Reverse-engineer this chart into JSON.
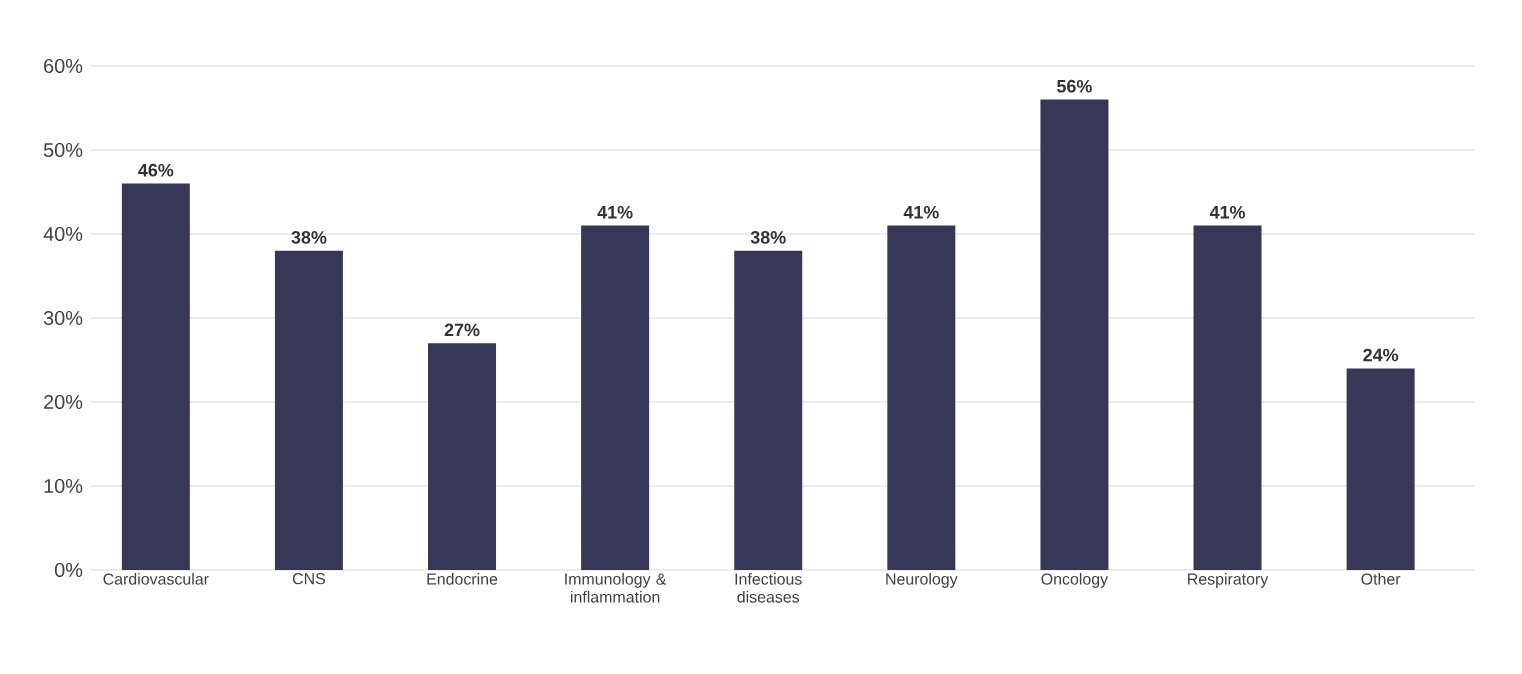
{
  "chart_data": {
    "type": "bar",
    "categories": [
      "Cardiovascular",
      "CNS",
      "Endocrine",
      "Immunology & inflammation",
      "Infectious diseases",
      "Neurology",
      "Oncology",
      "Respiratory",
      "Other"
    ],
    "values": [
      46,
      38,
      27,
      41,
      38,
      41,
      56,
      41,
      24
    ],
    "value_labels": [
      "46%",
      "38%",
      "27%",
      "41%",
      "38%",
      "41%",
      "56%",
      "41%",
      "24%"
    ],
    "color": "#363856",
    "ylim": [
      0,
      60
    ],
    "yticks": [
      {
        "value": 0,
        "label": "0%"
      },
      {
        "value": 10,
        "label": "10%"
      },
      {
        "value": 20,
        "label": "20%"
      },
      {
        "value": 30,
        "label": "30%"
      },
      {
        "value": 40,
        "label": "40%"
      },
      {
        "value": 50,
        "label": "50%"
      },
      {
        "value": 60,
        "label": "60%"
      }
    ],
    "grid": "y"
  }
}
